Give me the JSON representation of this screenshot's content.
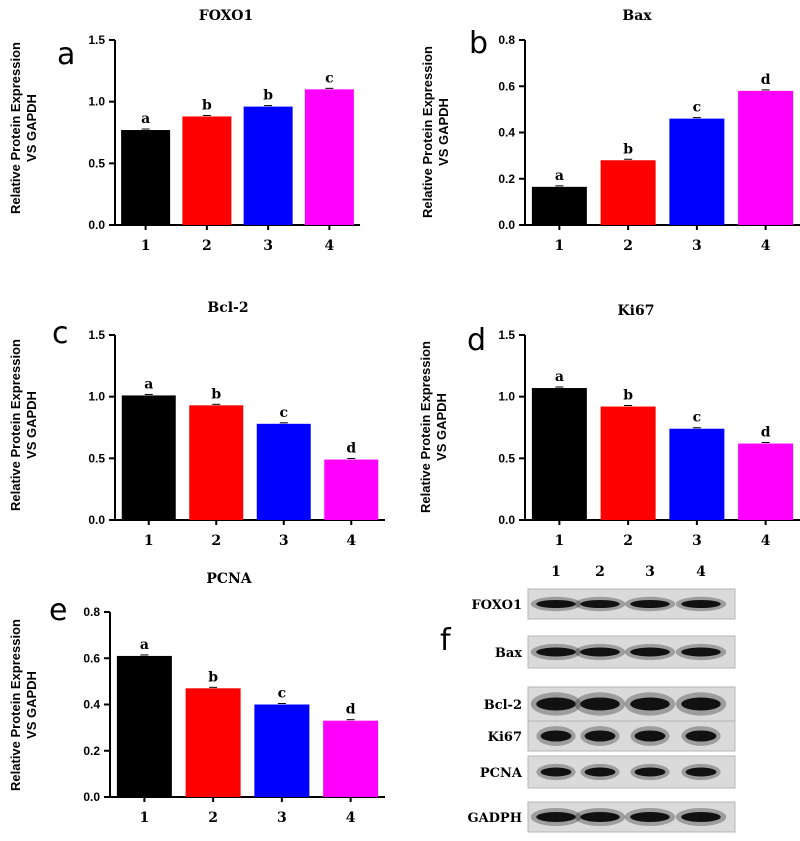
{
  "chart_data": [
    {
      "type": "bar",
      "panel": "a",
      "title": "FOXO1",
      "ylabel_line1": "Relative Protein Expression",
      "ylabel_line2": "VS GAPDH",
      "categories": [
        "1",
        "2",
        "3",
        "4"
      ],
      "values": [
        0.77,
        0.88,
        0.96,
        1.1
      ],
      "letters": [
        "a",
        "b",
        "b",
        "c"
      ],
      "colors": [
        "#000000",
        "#ff0000",
        "#0000ff",
        "#ff00ff"
      ],
      "ylim": [
        0,
        1.5
      ],
      "yticks": [
        "0.0",
        "0.5",
        "1.0",
        "1.5"
      ]
    },
    {
      "type": "bar",
      "panel": "b",
      "title": "Bax",
      "ylabel_line1": "Relative Protein Expression",
      "ylabel_line2": "VS GAPDH",
      "categories": [
        "1",
        "2",
        "3",
        "4"
      ],
      "values": [
        0.165,
        0.28,
        0.46,
        0.58
      ],
      "letters": [
        "a",
        "b",
        "c",
        "d"
      ],
      "colors": [
        "#000000",
        "#ff0000",
        "#0000ff",
        "#ff00ff"
      ],
      "ylim": [
        0,
        0.8
      ],
      "yticks": [
        "0.0",
        "0.2",
        "0.4",
        "0.6",
        "0.8"
      ]
    },
    {
      "type": "bar",
      "panel": "c",
      "title": "Bcl-2",
      "ylabel_line1": "Relative Protein Expression",
      "ylabel_line2": "VS GAPDH",
      "categories": [
        "1",
        "2",
        "3",
        "4"
      ],
      "values": [
        1.01,
        0.93,
        0.78,
        0.49
      ],
      "letters": [
        "a",
        "b",
        "c",
        "d"
      ],
      "colors": [
        "#000000",
        "#ff0000",
        "#0000ff",
        "#ff00ff"
      ],
      "ylim": [
        0,
        1.5
      ],
      "yticks": [
        "0.0",
        "0.5",
        "1.0",
        "1.5"
      ]
    },
    {
      "type": "bar",
      "panel": "d",
      "title": "Ki67",
      "ylabel_line1": "Relative Protein Expression",
      "ylabel_line2": "VS GAPDH",
      "categories": [
        "1",
        "2",
        "3",
        "4"
      ],
      "values": [
        1.07,
        0.92,
        0.74,
        0.62
      ],
      "letters": [
        "a",
        "b",
        "c",
        "d"
      ],
      "colors": [
        "#000000",
        "#ff0000",
        "#0000ff",
        "#ff00ff"
      ],
      "ylim": [
        0,
        1.5
      ],
      "yticks": [
        "0.0",
        "0.5",
        "1.0",
        "1.5"
      ]
    },
    {
      "type": "bar",
      "panel": "e",
      "title": "PCNA",
      "ylabel_line1": "Relative Protein Expression",
      "ylabel_line2": "VS GAPDH",
      "categories": [
        "1",
        "2",
        "3",
        "4"
      ],
      "values": [
        0.61,
        0.47,
        0.4,
        0.33
      ],
      "letters": [
        "a",
        "b",
        "c",
        "d"
      ],
      "colors": [
        "#000000",
        "#ff0000",
        "#0000ff",
        "#ff00ff"
      ],
      "ylim": [
        0,
        0.8
      ],
      "yticks": [
        "0.0",
        "0.2",
        "0.4",
        "0.6",
        "0.8"
      ]
    }
  ],
  "blot": {
    "panel": "f",
    "lanes": [
      "1",
      "2",
      "3",
      "4"
    ],
    "rows": [
      "FOXO1",
      "Bax",
      "Bcl-2",
      "Ki67",
      "PCNA",
      "GADPH"
    ]
  }
}
